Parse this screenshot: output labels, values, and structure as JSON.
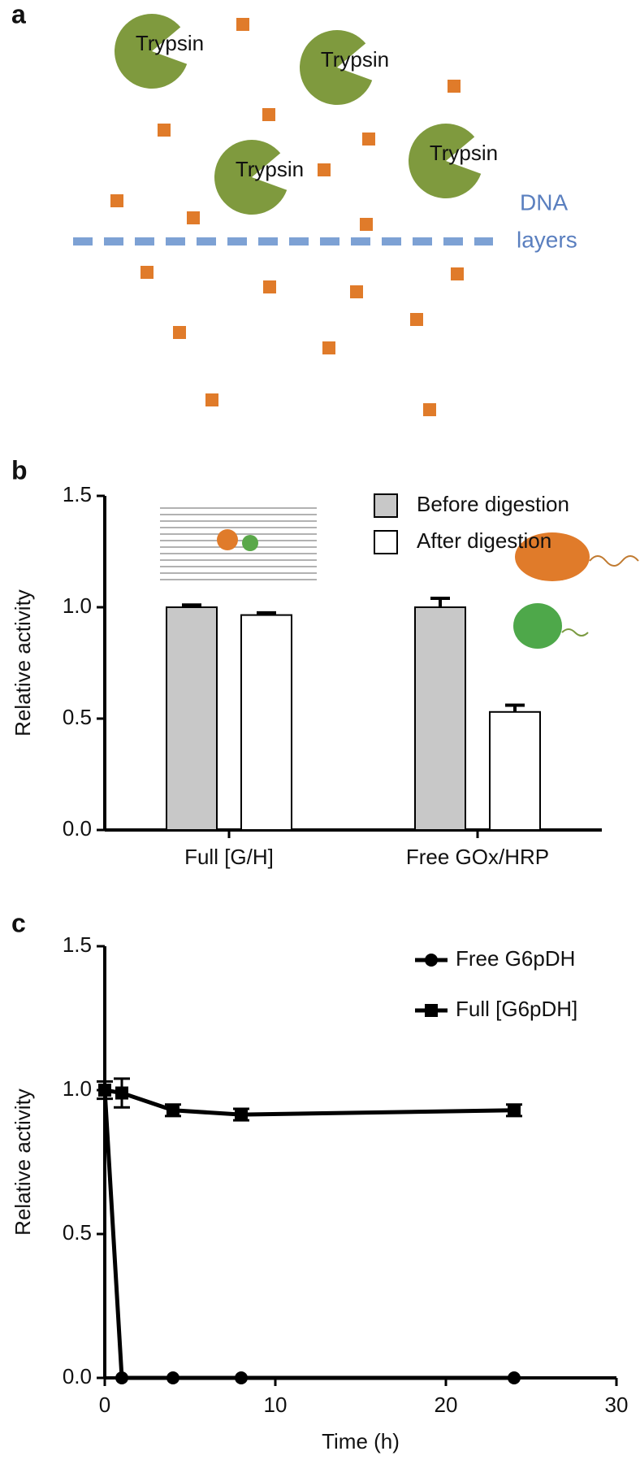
{
  "diagram": {
    "label": "a",
    "trypsin": [
      "Trypsin",
      "Trypsin",
      "Trypsin",
      "Trypsin"
    ],
    "layer_label": [
      "DNA",
      "layers"
    ]
  },
  "chart_data": [
    {
      "type": "bar",
      "label": "b",
      "ylabel": "Relative activity",
      "categories": [
        "Full [G/H]",
        "Free GOx/HRP"
      ],
      "series": [
        {
          "name": "Before digestion",
          "color": "#c8c8c8",
          "values": [
            1.0,
            1.0
          ],
          "errors": [
            0.01,
            0.04
          ]
        },
        {
          "name": "After digestion",
          "color": "#ffffff",
          "values": [
            0.965,
            0.53
          ],
          "errors": [
            0.01,
            0.03
          ]
        }
      ],
      "ylim": [
        0,
        1.5
      ],
      "yticks": [
        {
          "value": 0,
          "label": "0.0"
        },
        0.5,
        {
          "value": 1,
          "label": "1.0"
        },
        1.5
      ],
      "legend": "upper right"
    },
    {
      "type": "line",
      "label": "c",
      "ylabel": "Relative activity",
      "xlabel": "Time (h)",
      "x": [
        0,
        1,
        4,
        8,
        24
      ],
      "series": [
        {
          "name": "Free G6pDH",
          "color": "#000000",
          "marker": "circle",
          "values": [
            1.0,
            0,
            0,
            0,
            0
          ]
        },
        {
          "name": "Full [G6pDH]",
          "color": "#000000",
          "marker": "square",
          "values": [
            1.0,
            0.99,
            0.93,
            0.915,
            0.93
          ],
          "errors": [
            0.03,
            0.05,
            0.02,
            0.02,
            0.02
          ]
        }
      ],
      "xlim": [
        0,
        30
      ],
      "xticks": [
        0,
        10,
        20,
        30
      ],
      "ylim": [
        0,
        1.5
      ],
      "yticks": [
        {
          "value": 0,
          "label": "0.0"
        },
        0.5,
        {
          "value": 1,
          "label": "1.0"
        },
        1.5
      ],
      "legend": "upper right"
    }
  ]
}
